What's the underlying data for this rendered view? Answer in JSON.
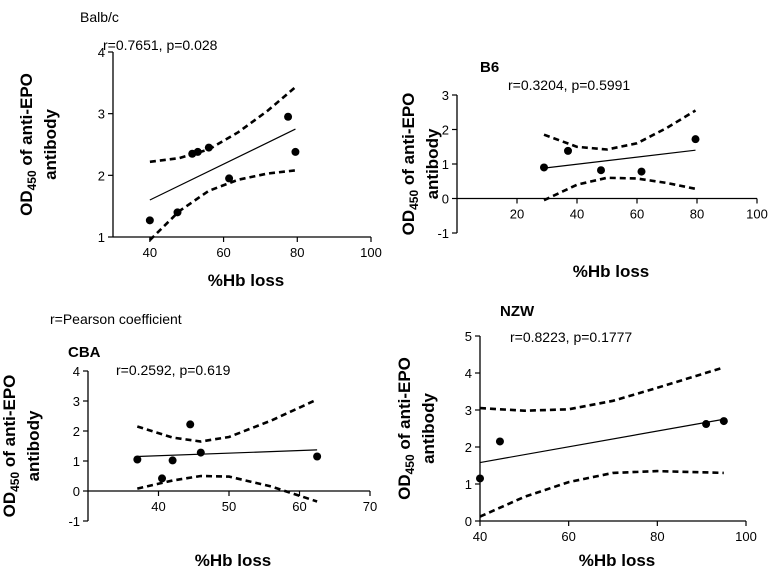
{
  "footnote": "r=Pearson coefficient",
  "chart_data": [
    {
      "id": "balbc",
      "type": "scatter",
      "title": "Balb/c",
      "annotation": "r=0.7651, p=0.028",
      "xlabel": "%Hb loss",
      "ylabel_main": "OD",
      "ylabel_sub": "450",
      "ylabel_rest": " of anti-EPO",
      "ylabel_line2": "antibody",
      "xlim": [
        30,
        100
      ],
      "ylim": [
        1,
        4
      ],
      "xticks": [
        40,
        60,
        80,
        100
      ],
      "yticks": [
        1,
        2,
        3,
        4
      ],
      "points": [
        [
          40,
          1.27
        ],
        [
          47.5,
          1.4
        ],
        [
          51.5,
          2.35
        ],
        [
          53,
          2.38
        ],
        [
          56,
          2.45
        ],
        [
          61.5,
          1.95
        ],
        [
          77.5,
          2.95
        ],
        [
          79.5,
          2.38
        ]
      ],
      "fit": {
        "x": [
          40,
          79.5
        ],
        "y": [
          1.6,
          2.75
        ]
      },
      "ci_upper": [
        [
          40,
          2.22
        ],
        [
          48,
          2.28
        ],
        [
          56,
          2.42
        ],
        [
          64,
          2.7
        ],
        [
          72,
          3.05
        ],
        [
          79.5,
          3.43
        ]
      ],
      "ci_lower": [
        [
          40,
          0.95
        ],
        [
          48,
          1.42
        ],
        [
          56,
          1.75
        ],
        [
          64,
          1.93
        ],
        [
          72,
          2.03
        ],
        [
          79.5,
          2.08
        ]
      ]
    },
    {
      "id": "b6",
      "type": "scatter",
      "title": "B6",
      "annotation": "r=0.3204, p=0.5991",
      "xlabel": "%Hb loss",
      "ylabel_main": "OD",
      "ylabel_sub": "450",
      "ylabel_rest": " of anti-EPO",
      "ylabel_line2": "antibody",
      "xlim": [
        0,
        100
      ],
      "ylim": [
        -1,
        3
      ],
      "xticks": [
        20,
        40,
        60,
        80,
        100
      ],
      "yticks": [
        -1,
        0,
        1,
        2,
        3
      ],
      "points": [
        [
          29,
          0.9
        ],
        [
          37,
          1.38
        ],
        [
          48,
          0.82
        ],
        [
          61.5,
          0.78
        ],
        [
          79.5,
          1.72
        ]
      ],
      "fit": {
        "x": [
          29,
          79.5
        ],
        "y": [
          0.88,
          1.4
        ]
      },
      "ci_upper": [
        [
          29,
          1.85
        ],
        [
          40,
          1.5
        ],
        [
          50,
          1.42
        ],
        [
          60,
          1.6
        ],
        [
          70,
          2.05
        ],
        [
          79.5,
          2.55
        ]
      ],
      "ci_lower": [
        [
          29,
          -0.05
        ],
        [
          40,
          0.4
        ],
        [
          50,
          0.6
        ],
        [
          60,
          0.58
        ],
        [
          70,
          0.45
        ],
        [
          79.5,
          0.28
        ]
      ]
    },
    {
      "id": "cba",
      "type": "scatter",
      "title": "CBA",
      "annotation": "r=0.2592, p=0.619",
      "xlabel": "%Hb loss",
      "ylabel_main": "OD",
      "ylabel_sub": "450",
      "ylabel_rest": " of anti-EPO",
      "ylabel_line2": "antibody",
      "xlim": [
        30,
        70
      ],
      "ylim": [
        -1,
        4
      ],
      "xticks": [
        40,
        50,
        60,
        70
      ],
      "yticks": [
        -1,
        0,
        1,
        2,
        3,
        4
      ],
      "points": [
        [
          37,
          1.05
        ],
        [
          40.5,
          0.42
        ],
        [
          42,
          1.02
        ],
        [
          44.5,
          2.22
        ],
        [
          46,
          1.28
        ],
        [
          62.5,
          1.15
        ]
      ],
      "fit": {
        "x": [
          37,
          62.5
        ],
        "y": [
          1.15,
          1.37
        ]
      },
      "ci_upper": [
        [
          37,
          2.15
        ],
        [
          42,
          1.78
        ],
        [
          46,
          1.65
        ],
        [
          50,
          1.8
        ],
        [
          56,
          2.35
        ],
        [
          62.5,
          3.05
        ]
      ],
      "ci_lower": [
        [
          37,
          0.08
        ],
        [
          42,
          0.35
        ],
        [
          46,
          0.5
        ],
        [
          50,
          0.48
        ],
        [
          56,
          0.15
        ],
        [
          62.5,
          -0.35
        ]
      ]
    },
    {
      "id": "nzw",
      "type": "scatter",
      "title": "NZW",
      "annotation": "r=0.8223, p=0.1777",
      "xlabel": "%Hb loss",
      "ylabel_main": "OD",
      "ylabel_sub": "450",
      "ylabel_rest": " of anti-EPO",
      "ylabel_line2": "antibody",
      "xlim": [
        40,
        100
      ],
      "ylim": [
        0,
        5
      ],
      "xticks": [
        40,
        60,
        80,
        100
      ],
      "yticks": [
        0,
        1,
        2,
        3,
        4,
        5
      ],
      "points": [
        [
          40,
          1.15
        ],
        [
          44.5,
          2.15
        ],
        [
          91,
          2.62
        ],
        [
          95,
          2.7
        ]
      ],
      "fit": {
        "x": [
          40,
          95
        ],
        "y": [
          1.58,
          2.75
        ]
      },
      "ci_upper": [
        [
          40,
          3.05
        ],
        [
          50,
          2.98
        ],
        [
          60,
          3.02
        ],
        [
          70,
          3.25
        ],
        [
          80,
          3.6
        ],
        [
          95,
          4.15
        ]
      ],
      "ci_lower": [
        [
          40,
          0.12
        ],
        [
          50,
          0.65
        ],
        [
          60,
          1.05
        ],
        [
          70,
          1.3
        ],
        [
          80,
          1.35
        ],
        [
          95,
          1.3
        ]
      ]
    }
  ]
}
